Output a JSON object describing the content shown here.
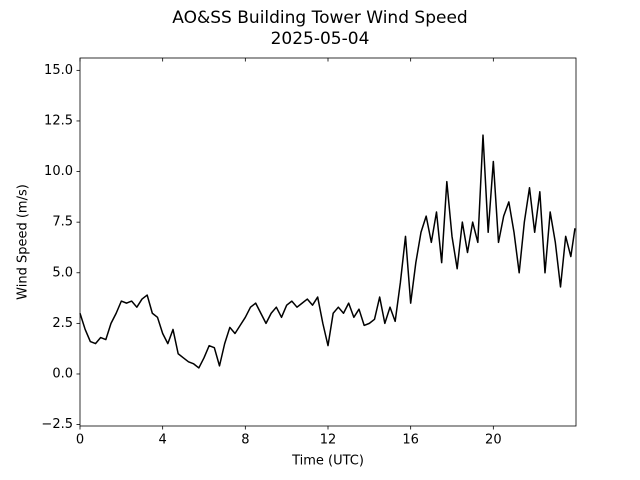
{
  "chart_data": {
    "type": "line",
    "title": "AO&SS Building Tower Wind Speed",
    "subtitle": "2025-05-04",
    "x_label": "Time (UTC)",
    "y_label": "Wind Speed (m/s)",
    "color": "#000000",
    "x": [
      0,
      0.25,
      0.5,
      0.75,
      1,
      1.25,
      1.5,
      1.75,
      2,
      2.25,
      2.5,
      2.75,
      3,
      3.25,
      3.5,
      3.75,
      4,
      4.25,
      4.5,
      4.75,
      5,
      5.25,
      5.5,
      5.75,
      6,
      6.25,
      6.5,
      6.75,
      7,
      7.25,
      7.5,
      7.75,
      8,
      8.25,
      8.5,
      8.75,
      9,
      9.25,
      9.5,
      9.75,
      10,
      10.25,
      10.5,
      10.75,
      11,
      11.25,
      11.5,
      11.75,
      12,
      12.25,
      12.5,
      12.75,
      13,
      13.25,
      13.5,
      13.75,
      14,
      14.25,
      14.5,
      14.75,
      15,
      15.25,
      15.5,
      15.75,
      16,
      16.25,
      16.5,
      16.75,
      17,
      17.25,
      17.5,
      17.75,
      18,
      18.25,
      18.5,
      18.75,
      19,
      19.25,
      19.5,
      19.75,
      20,
      20.25,
      20.5,
      20.75,
      21,
      21.25,
      21.5,
      21.75,
      22,
      22.25,
      22.5,
      22.75,
      23,
      23.25,
      23.5,
      23.75,
      23.95
    ],
    "values": [
      3.0,
      2.2,
      1.6,
      1.5,
      1.8,
      1.7,
      2.5,
      3.0,
      3.6,
      3.5,
      3.6,
      3.3,
      3.7,
      3.9,
      3.0,
      2.8,
      2.0,
      1.5,
      2.2,
      1.0,
      0.8,
      0.6,
      0.5,
      0.3,
      0.8,
      1.4,
      1.3,
      0.4,
      1.5,
      2.3,
      2.0,
      2.4,
      2.8,
      3.3,
      3.5,
      3.0,
      2.5,
      3.0,
      3.3,
      2.8,
      3.4,
      3.6,
      3.3,
      3.5,
      3.7,
      3.4,
      3.8,
      2.5,
      1.4,
      3.0,
      3.3,
      3.0,
      3.5,
      2.8,
      3.2,
      2.4,
      2.5,
      2.7,
      3.8,
      2.5,
      3.3,
      2.6,
      4.5,
      6.8,
      3.5,
      5.5,
      7.0,
      7.8,
      6.5,
      8.0,
      5.5,
      9.5,
      6.8,
      5.2,
      7.5,
      6.0,
      7.5,
      6.5,
      11.8,
      7.0,
      10.5,
      6.5,
      7.8,
      8.5,
      7.0,
      5.0,
      7.5,
      9.2,
      7.0,
      9.0,
      5.0,
      8.0,
      6.5,
      4.3,
      6.8,
      5.8,
      7.2
    ],
    "xlim": [
      0,
      24
    ],
    "xticks": [
      0,
      4,
      8,
      12,
      16,
      20
    ],
    "ylim": [
      -2.57,
      15.61
    ],
    "yticks": [
      {
        "value": -2.5,
        "label": "−2.5"
      },
      {
        "value": 0,
        "label": "0.0"
      },
      2.5,
      {
        "value": 5,
        "label": "5.0"
      },
      7.5,
      {
        "value": 10,
        "label": "10.0"
      },
      12.5,
      {
        "value": 15,
        "label": "15.0"
      }
    ]
  }
}
